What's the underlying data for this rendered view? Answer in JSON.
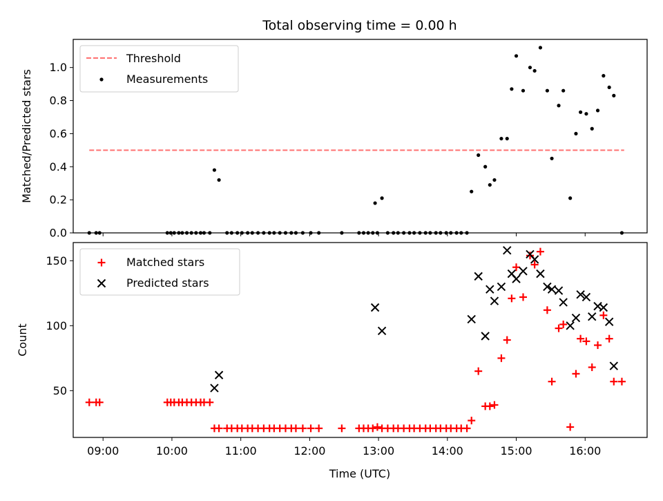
{
  "colors": {
    "threshold": "#ff7070",
    "measurements": "#000000",
    "matched": "#ff0000",
    "predicted": "#000000",
    "legend_border": "#cccccc"
  },
  "chart_data": [
    {
      "type": "scatter",
      "title": "Total observing time = 0.00 h",
      "xlabel": "",
      "ylabel": "Matched/Predicted stars",
      "xlim": [
        "08:34",
        "16:54"
      ],
      "ylim": [
        0,
        1.17
      ],
      "yticks": [
        0.0,
        0.2,
        0.4,
        0.6,
        0.8,
        1.0
      ],
      "ytick_labels": [
        "0.0",
        "0.2",
        "0.4",
        "0.6",
        "0.8",
        "1.0"
      ],
      "grid": false,
      "legend_position": "top-left",
      "series": [
        {
          "name": "Threshold",
          "kind": "line",
          "style": "dashed",
          "x": [
            "08:48",
            "16:34"
          ],
          "y": [
            0.5,
            0.5
          ]
        },
        {
          "name": "Measurements",
          "kind": "points",
          "marker": "dot",
          "points": [
            [
              "08:48",
              0.0
            ],
            [
              "08:54",
              0.0
            ],
            [
              "08:57",
              0.0
            ],
            [
              "09:56",
              0.0
            ],
            [
              "09:59",
              0.0
            ],
            [
              "10:02",
              0.0
            ],
            [
              "10:06",
              0.0
            ],
            [
              "10:09",
              0.0
            ],
            [
              "10:13",
              0.0
            ],
            [
              "10:17",
              0.0
            ],
            [
              "10:21",
              0.0
            ],
            [
              "10:25",
              0.0
            ],
            [
              "10:28",
              0.0
            ],
            [
              "10:33",
              0.0
            ],
            [
              "10:37",
              0.38
            ],
            [
              "10:41",
              0.32
            ],
            [
              "10:48",
              0.0
            ],
            [
              "10:52",
              0.0
            ],
            [
              "10:57",
              0.0
            ],
            [
              "11:01",
              0.0
            ],
            [
              "11:06",
              0.0
            ],
            [
              "11:10",
              0.0
            ],
            [
              "11:15",
              0.0
            ],
            [
              "11:20",
              0.0
            ],
            [
              "11:25",
              0.0
            ],
            [
              "11:29",
              0.0
            ],
            [
              "11:34",
              0.0
            ],
            [
              "11:39",
              0.0
            ],
            [
              "11:44",
              0.0
            ],
            [
              "11:48",
              0.0
            ],
            [
              "11:54",
              0.0
            ],
            [
              "12:01",
              0.0
            ],
            [
              "12:08",
              0.0
            ],
            [
              "12:28",
              0.0
            ],
            [
              "12:43",
              0.0
            ],
            [
              "12:47",
              0.0
            ],
            [
              "12:51",
              0.0
            ],
            [
              "12:55",
              0.0
            ],
            [
              "12:59",
              0.0
            ],
            [
              "12:57",
              0.18
            ],
            [
              "13:03",
              0.21
            ],
            [
              "13:08",
              0.0
            ],
            [
              "13:13",
              0.0
            ],
            [
              "13:17",
              0.0
            ],
            [
              "13:22",
              0.0
            ],
            [
              "13:27",
              0.0
            ],
            [
              "13:31",
              0.0
            ],
            [
              "13:36",
              0.0
            ],
            [
              "13:41",
              0.0
            ],
            [
              "13:45",
              0.0
            ],
            [
              "13:50",
              0.0
            ],
            [
              "13:54",
              0.0
            ],
            [
              "13:59",
              0.0
            ],
            [
              "14:03",
              0.0
            ],
            [
              "14:08",
              0.0
            ],
            [
              "14:12",
              0.0
            ],
            [
              "14:17",
              0.0
            ],
            [
              "14:21",
              0.25
            ],
            [
              "14:27",
              0.47
            ],
            [
              "14:33",
              0.4
            ],
            [
              "14:37",
              0.29
            ],
            [
              "14:41",
              0.32
            ],
            [
              "14:47",
              0.57
            ],
            [
              "14:52",
              0.57
            ],
            [
              "14:56",
              0.87
            ],
            [
              "15:00",
              1.07
            ],
            [
              "15:06",
              0.86
            ],
            [
              "15:12",
              1.0
            ],
            [
              "15:16",
              0.98
            ],
            [
              "15:21",
              1.12
            ],
            [
              "15:27",
              0.86
            ],
            [
              "15:31",
              0.45
            ],
            [
              "15:37",
              0.77
            ],
            [
              "15:41",
              0.86
            ],
            [
              "15:47",
              0.21
            ],
            [
              "15:52",
              0.6
            ],
            [
              "15:56",
              0.73
            ],
            [
              "16:01",
              0.72
            ],
            [
              "16:06",
              0.63
            ],
            [
              "16:11",
              0.74
            ],
            [
              "16:16",
              0.95
            ],
            [
              "16:21",
              0.88
            ],
            [
              "16:25",
              0.83
            ],
            [
              "16:32",
              0.0
            ]
          ]
        }
      ]
    },
    {
      "type": "scatter",
      "title": "",
      "xlabel": "Time (UTC)",
      "ylabel": "Count",
      "xlim": [
        "08:34",
        "16:54"
      ],
      "ylim": [
        14,
        164
      ],
      "yticks": [
        50,
        100,
        150
      ],
      "ytick_labels": [
        "50",
        "100",
        "150"
      ],
      "xticks": [
        "09:00",
        "10:00",
        "11:00",
        "12:00",
        "13:00",
        "14:00",
        "15:00",
        "16:00"
      ],
      "xtick_labels": [
        "09:00",
        "10:00",
        "11:00",
        "12:00",
        "13:00",
        "14:00",
        "15:00",
        "16:00"
      ],
      "grid": false,
      "legend_position": "top-left",
      "series": [
        {
          "name": "Matched stars",
          "kind": "points",
          "marker": "plus",
          "points": [
            [
              "08:48",
              41
            ],
            [
              "08:54",
              41
            ],
            [
              "08:57",
              41
            ],
            [
              "09:56",
              41
            ],
            [
              "09:59",
              41
            ],
            [
              "10:02",
              41
            ],
            [
              "10:06",
              41
            ],
            [
              "10:09",
              41
            ],
            [
              "10:13",
              41
            ],
            [
              "10:17",
              41
            ],
            [
              "10:21",
              41
            ],
            [
              "10:25",
              41
            ],
            [
              "10:28",
              41
            ],
            [
              "10:33",
              41
            ],
            [
              "10:37",
              21
            ],
            [
              "10:41",
              21
            ],
            [
              "10:48",
              21
            ],
            [
              "10:52",
              21
            ],
            [
              "10:57",
              21
            ],
            [
              "11:01",
              21
            ],
            [
              "11:06",
              21
            ],
            [
              "11:10",
              21
            ],
            [
              "11:15",
              21
            ],
            [
              "11:20",
              21
            ],
            [
              "11:25",
              21
            ],
            [
              "11:29",
              21
            ],
            [
              "11:34",
              21
            ],
            [
              "11:39",
              21
            ],
            [
              "11:44",
              21
            ],
            [
              "11:48",
              21
            ],
            [
              "11:54",
              21
            ],
            [
              "12:01",
              21
            ],
            [
              "12:08",
              21
            ],
            [
              "12:28",
              21
            ],
            [
              "12:43",
              21
            ],
            [
              "12:47",
              21
            ],
            [
              "12:51",
              21
            ],
            [
              "12:55",
              21
            ],
            [
              "12:59",
              22
            ],
            [
              "13:03",
              21
            ],
            [
              "13:08",
              21
            ],
            [
              "13:13",
              21
            ],
            [
              "13:17",
              21
            ],
            [
              "13:22",
              21
            ],
            [
              "13:27",
              21
            ],
            [
              "13:31",
              21
            ],
            [
              "13:36",
              21
            ],
            [
              "13:41",
              21
            ],
            [
              "13:45",
              21
            ],
            [
              "13:50",
              21
            ],
            [
              "13:54",
              21
            ],
            [
              "13:59",
              21
            ],
            [
              "14:03",
              21
            ],
            [
              "14:08",
              21
            ],
            [
              "14:12",
              21
            ],
            [
              "14:17",
              21
            ],
            [
              "14:21",
              27
            ],
            [
              "14:27",
              65
            ],
            [
              "14:33",
              38
            ],
            [
              "14:37",
              38
            ],
            [
              "14:41",
              39
            ],
            [
              "14:47",
              75
            ],
            [
              "14:52",
              89
            ],
            [
              "14:56",
              121
            ],
            [
              "15:00",
              145
            ],
            [
              "15:06",
              122
            ],
            [
              "15:12",
              154
            ],
            [
              "15:16",
              147
            ],
            [
              "15:21",
              157
            ],
            [
              "15:27",
              112
            ],
            [
              "15:31",
              57
            ],
            [
              "15:37",
              98
            ],
            [
              "15:41",
              101
            ],
            [
              "15:47",
              22
            ],
            [
              "15:52",
              63
            ],
            [
              "15:56",
              90
            ],
            [
              "16:01",
              88
            ],
            [
              "16:06",
              68
            ],
            [
              "16:11",
              85
            ],
            [
              "16:16",
              108
            ],
            [
              "16:21",
              90
            ],
            [
              "16:25",
              57
            ],
            [
              "16:32",
              57
            ]
          ]
        },
        {
          "name": "Predicted stars",
          "kind": "points",
          "marker": "x",
          "points": [
            [
              "10:37",
              52
            ],
            [
              "10:41",
              62
            ],
            [
              "12:57",
              114
            ],
            [
              "13:03",
              96
            ],
            [
              "14:21",
              105
            ],
            [
              "14:27",
              138
            ],
            [
              "14:33",
              92
            ],
            [
              "14:37",
              128
            ],
            [
              "14:41",
              119
            ],
            [
              "14:47",
              130
            ],
            [
              "14:52",
              158
            ],
            [
              "14:56",
              140
            ],
            [
              "15:00",
              136
            ],
            [
              "15:06",
              142
            ],
            [
              "15:12",
              155
            ],
            [
              "15:16",
              151
            ],
            [
              "15:21",
              140
            ],
            [
              "15:27",
              130
            ],
            [
              "15:31",
              128
            ],
            [
              "15:37",
              127
            ],
            [
              "15:41",
              118
            ],
            [
              "15:47",
              100
            ],
            [
              "15:52",
              106
            ],
            [
              "15:56",
              124
            ],
            [
              "16:01",
              122
            ],
            [
              "16:06",
              107
            ],
            [
              "16:11",
              115
            ],
            [
              "16:16",
              114
            ],
            [
              "16:21",
              103
            ],
            [
              "16:25",
              69
            ]
          ]
        }
      ]
    }
  ]
}
